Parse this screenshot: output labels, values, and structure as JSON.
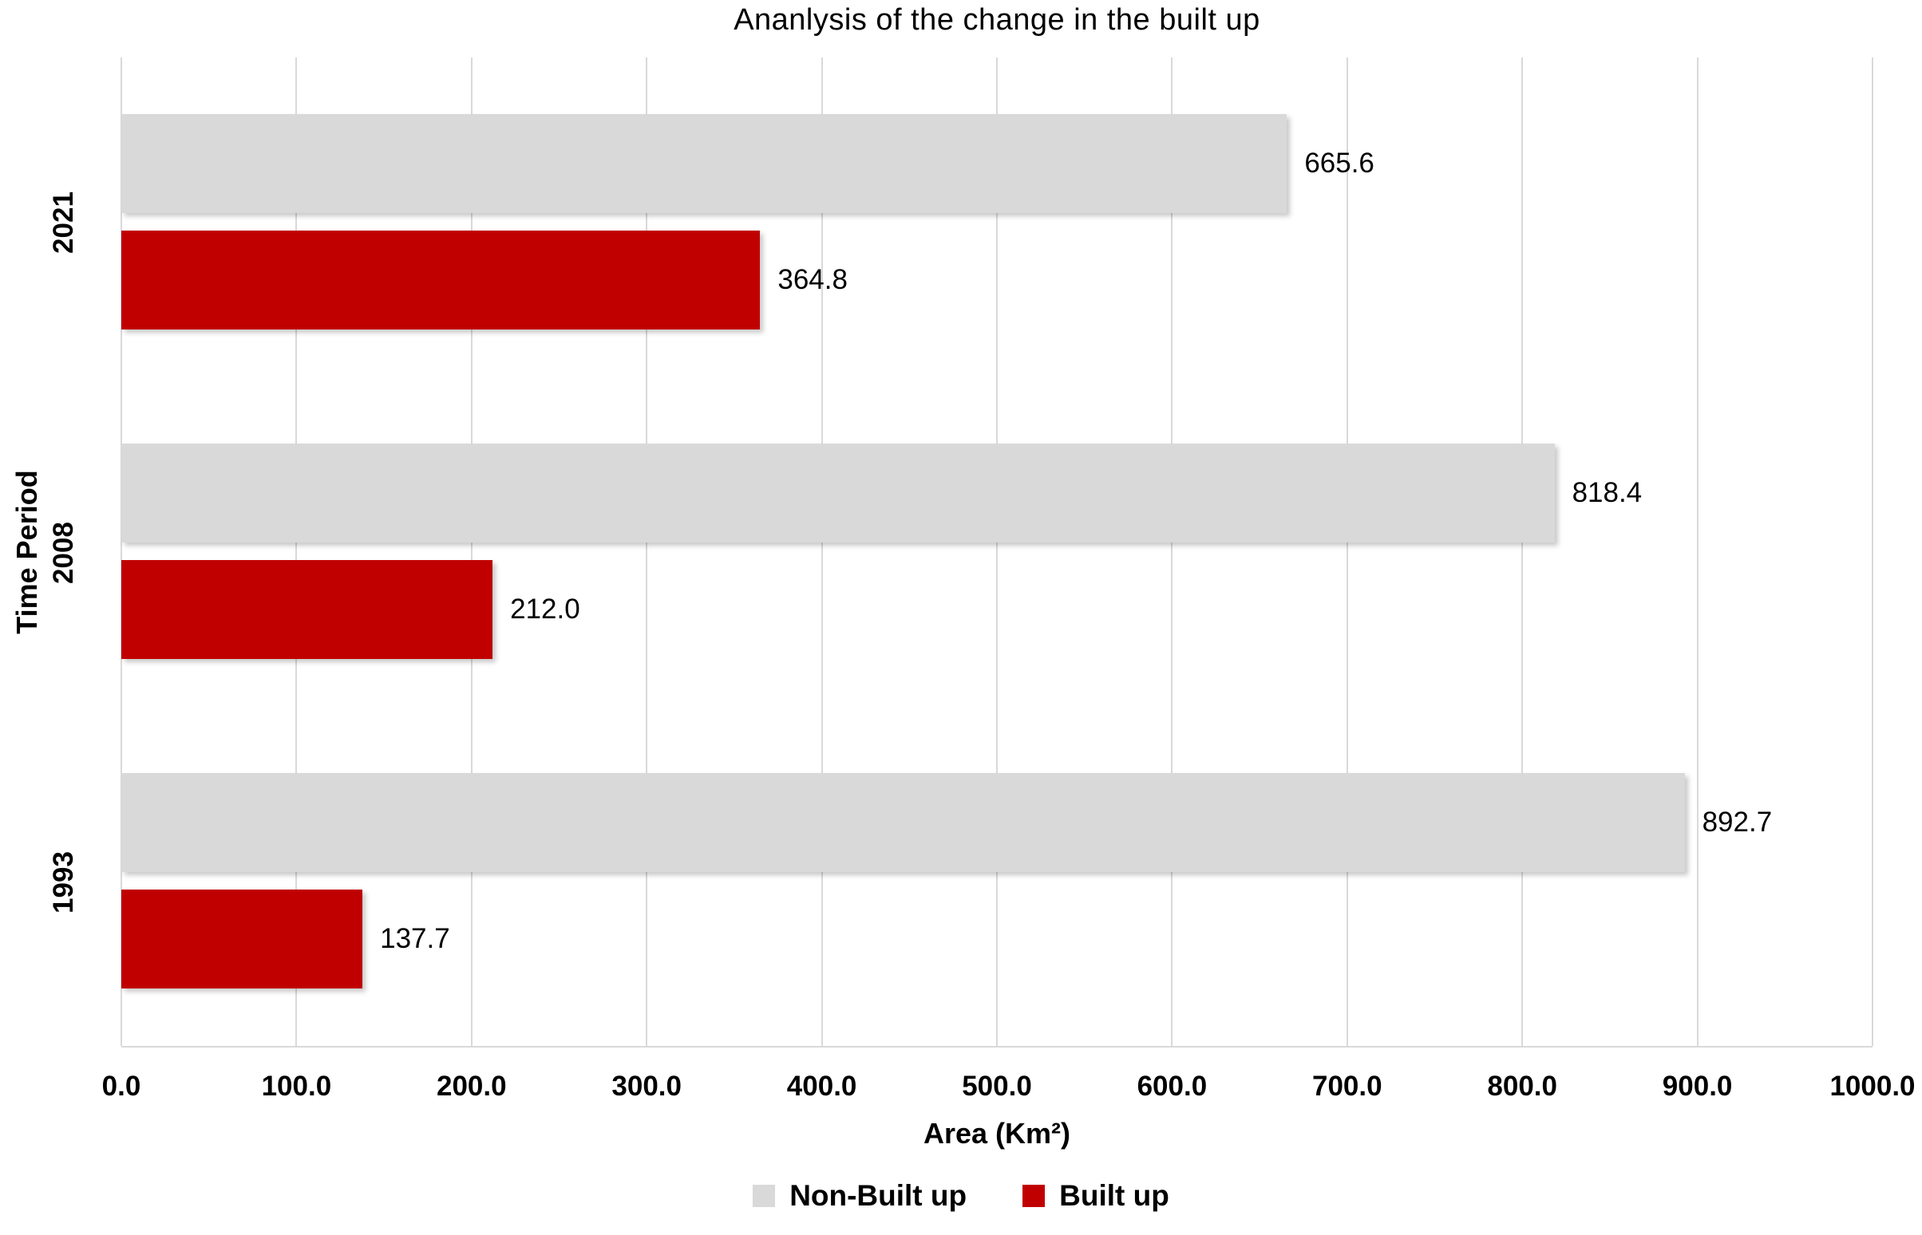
{
  "chart_data": {
    "type": "bar",
    "orientation": "horizontal",
    "title": "Ananlysis of the change in the built up",
    "xlabel": "Area (Km²)",
    "ylabel": "Time Period",
    "categories": [
      "2021",
      "2008",
      "1993"
    ],
    "series": [
      {
        "name": "Non-Built up",
        "color": "#d9d9d9",
        "values": [
          665.6,
          818.4,
          892.7
        ],
        "labels": [
          "665.6",
          "818.4",
          "892.7"
        ]
      },
      {
        "name": "Built up",
        "color": "#c00000",
        "values": [
          364.8,
          212.0,
          137.7
        ],
        "labels": [
          "364.8",
          "212.0",
          "137.7"
        ]
      }
    ],
    "xlim": [
      0,
      1000
    ],
    "x_ticks": [
      "0.0",
      "100.0",
      "200.0",
      "300.0",
      "400.0",
      "500.0",
      "600.0",
      "700.0",
      "800.0",
      "900.0",
      "1000.0"
    ],
    "grid": "vertical",
    "gridline_color": "#d9d9d9",
    "axis_line_color": "#d9d9d9",
    "text_color": "#000000",
    "legend_position": "bottom"
  }
}
